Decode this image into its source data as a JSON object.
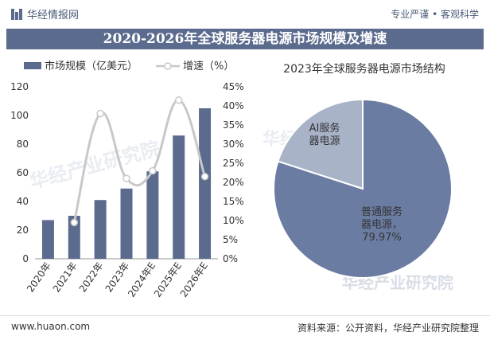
{
  "header": {
    "brand": "华经情报网",
    "slogan": "专业严谨 • 客观科学"
  },
  "title": "2020-2026年全球服务器电源市场规模及增速",
  "footer": {
    "site": "www.huaon.com",
    "source": "资料来源：公开资料，华经产业研究院整理"
  },
  "watermark": "华经产业研究院",
  "colors": {
    "title_bg": "#5b6b8e",
    "bar": "#5b6b8e",
    "line": "#c8c8c8",
    "pie_main": "#6b7ca3",
    "pie_minor": "#a8b3c8"
  },
  "chart_data": [
    {
      "type": "bar",
      "categories": [
        "2020年",
        "2021年",
        "2022年",
        "2023年",
        "2024年E",
        "2025年E",
        "2026年E"
      ],
      "series": [
        {
          "name": "市场规模（亿美元）",
          "type": "bar",
          "axis": "left",
          "values": [
            27,
            30,
            41,
            49,
            61,
            86,
            105
          ]
        },
        {
          "name": "增速（%）",
          "type": "line",
          "axis": "right",
          "values": [
            null,
            9.5,
            38,
            21,
            23,
            41.5,
            21.5
          ]
        }
      ],
      "ylim_left": [
        0,
        120
      ],
      "yticks_left": [
        "0",
        "20",
        "40",
        "60",
        "80",
        "100",
        "120"
      ],
      "ylim_right": [
        0,
        45
      ],
      "yticks_right": [
        "0%",
        "5%",
        "10%",
        "15%",
        "20%",
        "25%",
        "30%",
        "35%",
        "40%",
        "45%"
      ],
      "legend": "top"
    },
    {
      "type": "pie",
      "title": "2023年全球服务器电源市场结构",
      "labels": [
        "普通服务器电源，79.97%",
        "AI服务器电源"
      ],
      "values": [
        79.97,
        20.03
      ]
    }
  ]
}
